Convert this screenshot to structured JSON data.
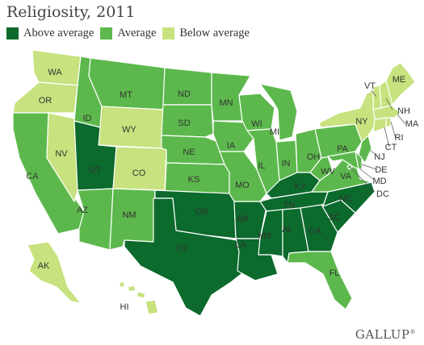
{
  "title": "Religiosity, 2011",
  "legend": [
    {
      "label": "Above average",
      "color": "#0b6a2c"
    },
    {
      "label": "Average",
      "color": "#5cb84c"
    },
    {
      "label": "Below average",
      "color": "#c7e27e"
    }
  ],
  "states": {
    "WA": "Below average",
    "OR": "Below average",
    "CA": "Average",
    "NV": "Below average",
    "ID": "Average",
    "MT": "Average",
    "WY": "Below average",
    "UT": "Above average",
    "CO": "Below average",
    "AZ": "Average",
    "NM": "Average",
    "ND": "Average",
    "SD": "Average",
    "NE": "Average",
    "KS": "Average",
    "OK": "Above average",
    "TX": "Above average",
    "MN": "Average",
    "IA": "Average",
    "MO": "Average",
    "AR": "Above average",
    "LA": "Above average",
    "WI": "Average",
    "IL": "Average",
    "MI": "Average",
    "IN": "Average",
    "OH": "Average",
    "KY": "Above average",
    "TN": "Above average",
    "MS": "Above average",
    "AL": "Above average",
    "GA": "Above average",
    "FL": "Average",
    "SC": "Above average",
    "NC": "Above average",
    "VA": "Average",
    "WV": "Average",
    "PA": "Average",
    "NY": "Below average",
    "VT": "Below average",
    "NH": "Below average",
    "ME": "Below average",
    "MA": "Below average",
    "RI": "Below average",
    "CT": "Below average",
    "NJ": "Average",
    "DE": "Average",
    "MD": "Average",
    "DC": "Average",
    "AK": "Below average",
    "HI": "Below average"
  },
  "brand": "GALLUP"
}
